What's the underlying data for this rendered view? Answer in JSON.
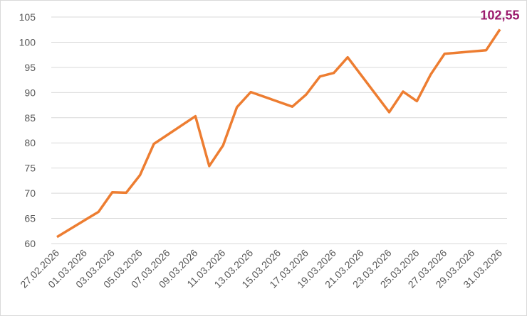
{
  "chart_data": {
    "type": "line",
    "x": [
      "27.02.2026",
      "02.03.2026",
      "03.03.2026",
      "04.03.2026",
      "05.03.2026",
      "06.03.2026",
      "09.03.2026",
      "10.03.2026",
      "11.03.2026",
      "12.03.2026",
      "13.03.2026",
      "16.03.2026",
      "17.03.2026",
      "18.03.2026",
      "19.03.2026",
      "20.03.2026",
      "23.03.2026",
      "24.03.2026",
      "25.03.2026",
      "26.03.2026",
      "27.03.2026",
      "30.03.2026",
      "31.03.2026"
    ],
    "series": [
      {
        "color": "#ed7d31",
        "values": [
          61.3,
          66.3,
          70.2,
          70.1,
          73.6,
          79.8,
          85.3,
          75.4,
          79.5,
          87.1,
          90.1,
          87.2,
          89.6,
          93.2,
          93.9,
          97.0,
          86.1,
          90.2,
          88.3,
          93.6,
          97.7,
          98.4,
          102.55
        ]
      }
    ],
    "annotation": {
      "x": "31.03.2026",
      "y": 102.55,
      "label": "102,55",
      "color": "#9b1b6e"
    },
    "xlim": [
      "27.02.2026",
      "31.03.2026"
    ],
    "xticks": [
      "27.02.2026",
      "01.03.2026",
      "03.03.2026",
      "05.03.2026",
      "07.03.2026",
      "09.03.2026",
      "11.03.2026",
      "13.03.2026",
      "15.03.2026",
      "17.03.2026",
      "19.03.2026",
      "21.03.2026",
      "23.03.2026",
      "25.03.2026",
      "27.03.2026",
      "29.03.2026",
      "31.03.2026"
    ],
    "ylim": [
      60,
      105
    ],
    "yticks": [
      60,
      65,
      70,
      75,
      80,
      85,
      90,
      95,
      100,
      105
    ],
    "grid": true
  }
}
